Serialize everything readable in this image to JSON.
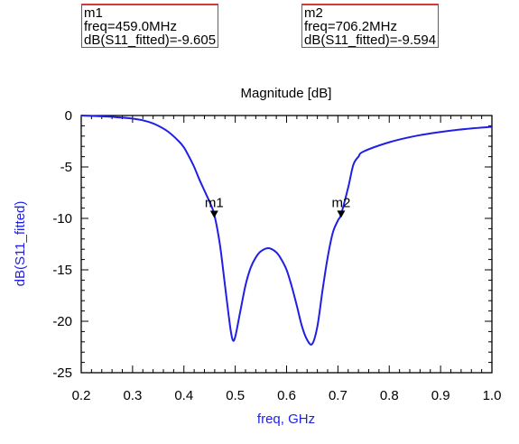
{
  "markers": [
    {
      "name": "m1",
      "freq_text": "freq=459.0MHz",
      "value_text": "dB(S11_fitted)=-9.605",
      "x": 0.459,
      "y": -9.605
    },
    {
      "name": "m2",
      "freq_text": "freq=706.2MHz",
      "value_text": "dB(S11_fitted)=-9.594",
      "x": 0.7062,
      "y": -9.594
    }
  ],
  "chart_data": {
    "type": "line",
    "title": "Magnitude [dB]",
    "xlabel": "freq, GHz",
    "ylabel": "dB(S11_fitted)",
    "xlim": [
      0.2,
      1.0
    ],
    "ylim": [
      -25,
      0
    ],
    "xticks": [
      "0.2",
      "0.3",
      "0.4",
      "0.5",
      "0.6",
      "0.7",
      "0.8",
      "0.9",
      "1.0"
    ],
    "yticks": [
      "0",
      "-5",
      "-10",
      "-15",
      "-20",
      "-25"
    ],
    "series": [
      {
        "color": "#1f1fe6",
        "x": [
          0.2,
          0.25,
          0.3,
          0.33,
          0.35,
          0.37,
          0.39,
          0.4,
          0.41,
          0.42,
          0.43,
          0.44,
          0.45,
          0.459,
          0.47,
          0.48,
          0.49,
          0.495,
          0.5,
          0.51,
          0.52,
          0.53,
          0.54,
          0.55,
          0.565,
          0.58,
          0.59,
          0.6,
          0.61,
          0.62,
          0.63,
          0.64,
          0.65,
          0.66,
          0.67,
          0.68,
          0.69,
          0.7,
          0.7062,
          0.72,
          0.73,
          0.74,
          0.75,
          0.8,
          0.85,
          0.9,
          0.95,
          1.0
        ],
        "y": [
          0.0,
          -0.1,
          -0.3,
          -0.6,
          -1.0,
          -1.6,
          -2.5,
          -3.1,
          -4.0,
          -5.0,
          -6.2,
          -7.3,
          -8.4,
          -9.6,
          -12.5,
          -16.5,
          -20.5,
          -21.8,
          -21.5,
          -19.0,
          -16.5,
          -14.8,
          -13.8,
          -13.2,
          -12.9,
          -13.3,
          -14.0,
          -15.0,
          -16.6,
          -18.5,
          -20.5,
          -21.8,
          -22.2,
          -20.5,
          -17.0,
          -13.8,
          -11.4,
          -10.2,
          -9.6,
          -7.0,
          -4.8,
          -4.0,
          -3.5,
          -2.6,
          -2.0,
          -1.6,
          -1.3,
          -1.1
        ]
      }
    ],
    "markers": [
      {
        "name": "m1",
        "x": 0.459,
        "y": -9.605
      },
      {
        "name": "m2",
        "x": 0.7062,
        "y": -9.594
      }
    ]
  }
}
